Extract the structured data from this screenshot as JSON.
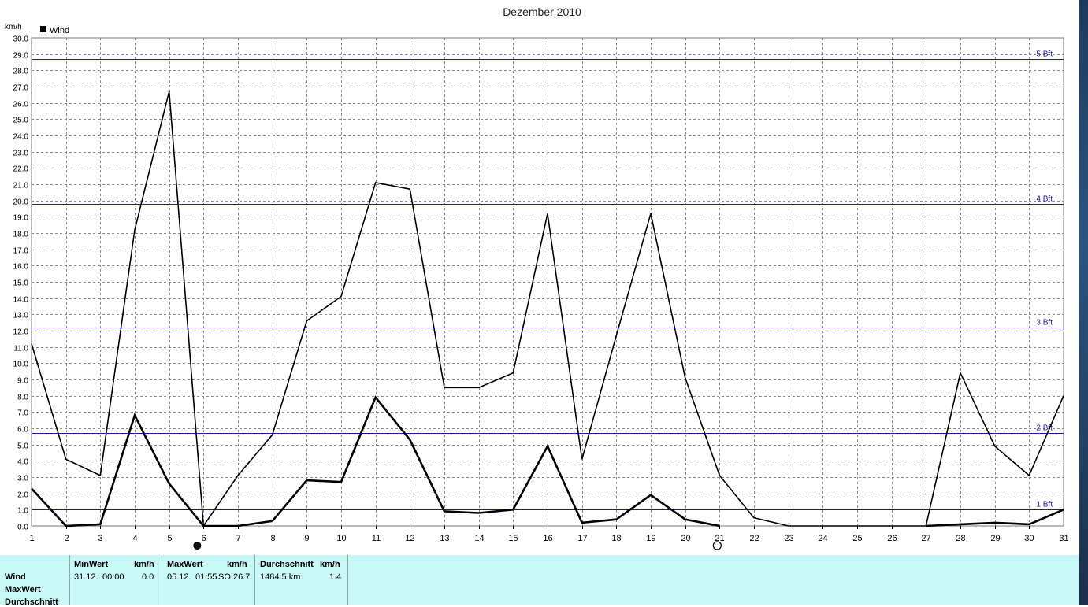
{
  "chart_data": {
    "type": "line",
    "title": "Dezember 2010",
    "ylabel": "km/h",
    "ylim": [
      0,
      30
    ],
    "ytick_step": 1,
    "grid": true,
    "legend": {
      "position": "top-left",
      "entries": [
        "Wind"
      ]
    },
    "x": [
      1,
      2,
      3,
      4,
      5,
      6,
      7,
      8,
      9,
      10,
      11,
      12,
      13,
      14,
      15,
      16,
      17,
      18,
      19,
      20,
      21,
      22,
      23,
      24,
      25,
      26,
      27,
      28,
      29,
      30,
      31
    ],
    "series": [
      {
        "name": "MaxWert",
        "values": [
          11.2,
          4.1,
          3.1,
          18.2,
          26.7,
          0.0,
          3.1,
          5.6,
          12.6,
          14.1,
          21.1,
          20.7,
          8.5,
          8.5,
          9.4,
          19.2,
          4.1,
          11.7,
          19.2,
          9.1,
          3.1,
          0.5,
          0.0,
          0,
          0,
          0,
          0,
          9.4,
          4.9,
          3.1,
          8.0
        ]
      },
      {
        "name": "Wind",
        "values": [
          2.3,
          0.0,
          0.1,
          6.8,
          2.6,
          0.0,
          0.0,
          0.3,
          2.8,
          2.7,
          7.9,
          5.3,
          0.9,
          0.8,
          1.0,
          4.9,
          0.2,
          0.4,
          1.9,
          0.4,
          0.0,
          null,
          null,
          null,
          null,
          null,
          0.0,
          0.1,
          0.2,
          0.1,
          1.0
        ]
      }
    ],
    "reference_lines": [
      {
        "label": "1 Bft",
        "value": 1.0
      },
      {
        "label": "2 Bft",
        "value": 5.7
      },
      {
        "label": "3 Bft",
        "value": 12.2
      },
      {
        "label": "4 Bft",
        "value": 19.8
      },
      {
        "label": "5 Bft",
        "value": 28.7
      }
    ],
    "markers": [
      {
        "type": "new-moon",
        "x": 6
      },
      {
        "type": "full-moon",
        "x": 21
      }
    ],
    "colors": {
      "lines": "#000000",
      "reference": "#1a1aa0",
      "grid": "#888888"
    }
  },
  "stats": {
    "row_labels": [
      "Wind",
      "MaxWert",
      "Durchschnitt"
    ],
    "min": {
      "header": "MinWert",
      "unit": "km/h",
      "date": "31.12.",
      "time": "00:00",
      "value": "0.0"
    },
    "max": {
      "header": "MaxWert",
      "unit": "km/h",
      "date": "05.12.",
      "time": "01:55",
      "dir": "SO",
      "value": "26.7"
    },
    "avg": {
      "header": "Durchschnitt",
      "unit": "km/h",
      "distance": "1484.5 km",
      "value": "1.4"
    }
  },
  "colors": {
    "stats_bg": "#c8f8f5"
  }
}
